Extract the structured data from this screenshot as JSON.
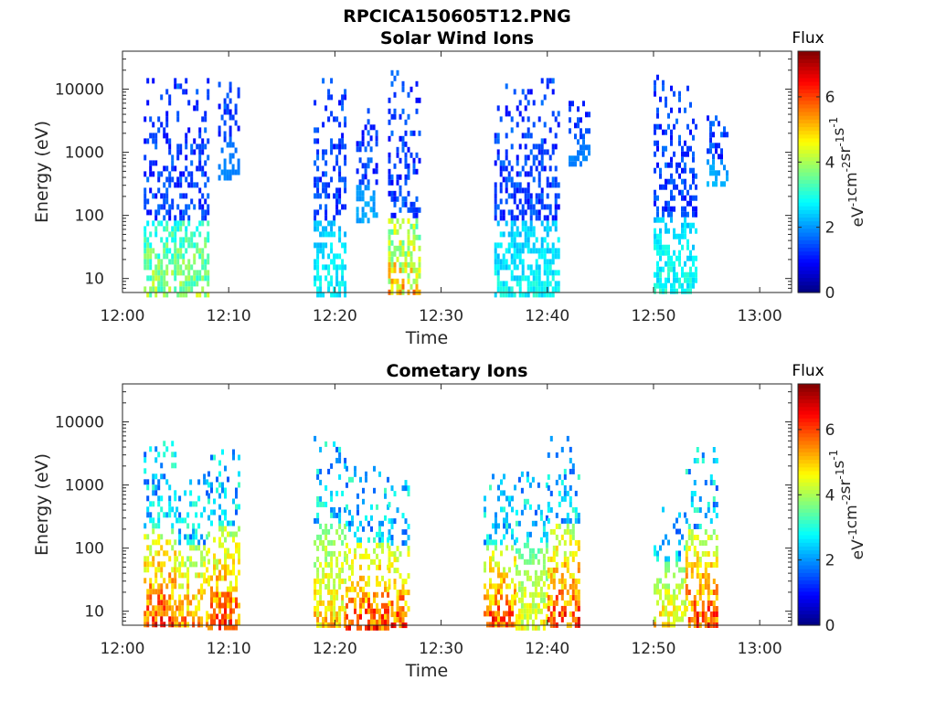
{
  "figure": {
    "filename_title": "RPCICA150605T12.PNG"
  },
  "chart_data": [
    {
      "type": "heatmap",
      "title": "Solar Wind Ions",
      "xlabel": "Time",
      "ylabel": "Energy (eV)",
      "y_scale": "log",
      "ylim": [
        6,
        40000
      ],
      "xlim": [
        "12:00",
        "13:03"
      ],
      "x_ticks": [
        "12:00",
        "12:10",
        "12:20",
        "12:30",
        "12:40",
        "12:50",
        "13:00"
      ],
      "y_ticks": [
        {
          "value": 10,
          "label": "10"
        },
        {
          "value": 100,
          "label": "100"
        },
        {
          "value": 1000,
          "label": "1000"
        },
        {
          "value": 10000,
          "label": "10000"
        }
      ],
      "colorbar": {
        "title": "Flux",
        "label": "eV-1cm-2sr-1s-1",
        "range": [
          0,
          7.4
        ],
        "ticks": [
          "0",
          "2",
          "4",
          "6"
        ],
        "colormap": "jet"
      },
      "grid": false,
      "clusters": [
        {
          "t_start": "12:02",
          "t_end": "12:08",
          "e_min": 6,
          "e_max": 15000,
          "flux_peak": 4.6
        },
        {
          "t_start": "12:09",
          "t_end": "12:11",
          "e_min": 400,
          "e_max": 16000,
          "flux_peak": 2.0
        },
        {
          "t_start": "12:18",
          "t_end": "12:21",
          "e_min": 6,
          "e_max": 15000,
          "flux_peak": 3.2
        },
        {
          "t_start": "12:22",
          "t_end": "12:24",
          "e_min": 80,
          "e_max": 5000,
          "flux_peak": 2.4
        },
        {
          "t_start": "12:25",
          "t_end": "12:28",
          "e_min": 6,
          "e_max": 20000,
          "flux_peak": 6.0
        },
        {
          "t_start": "12:35",
          "t_end": "12:41",
          "e_min": 6,
          "e_max": 15000,
          "flux_peak": 3.2
        },
        {
          "t_start": "12:42",
          "t_end": "12:44",
          "e_min": 700,
          "e_max": 8000,
          "flux_peak": 2.0
        },
        {
          "t_start": "12:50",
          "t_end": "12:54",
          "e_min": 6,
          "e_max": 17000,
          "flux_peak": 3.4
        },
        {
          "t_start": "12:55",
          "t_end": "12:57",
          "e_min": 300,
          "e_max": 7000,
          "flux_peak": 2.4
        }
      ]
    },
    {
      "type": "heatmap",
      "title": "Cometary Ions",
      "xlabel": "Time",
      "ylabel": "Energy (eV)",
      "y_scale": "log",
      "ylim": [
        6,
        40000
      ],
      "xlim": [
        "12:00",
        "13:03"
      ],
      "x_ticks": [
        "12:00",
        "12:10",
        "12:20",
        "12:30",
        "12:40",
        "12:50",
        "13:00"
      ],
      "y_ticks": [
        {
          "value": 10,
          "label": "10"
        },
        {
          "value": 100,
          "label": "100"
        },
        {
          "value": 1000,
          "label": "1000"
        },
        {
          "value": 10000,
          "label": "10000"
        }
      ],
      "colorbar": {
        "title": "Flux",
        "label": "eV-1cm-2sr-1s-1",
        "range": [
          0,
          7.4
        ],
        "ticks": [
          "0",
          "2",
          "4",
          "6"
        ],
        "colormap": "jet"
      },
      "grid": false,
      "clusters": [
        {
          "t_start": "12:02",
          "t_end": "12:05",
          "e_min": 6,
          "e_max": 5000,
          "flux_peak": 7.0
        },
        {
          "t_start": "12:05",
          "t_end": "12:08",
          "e_min": 6,
          "e_max": 1500,
          "flux_peak": 6.4
        },
        {
          "t_start": "12:08",
          "t_end": "12:11",
          "e_min": 6,
          "e_max": 4500,
          "flux_peak": 6.8
        },
        {
          "t_start": "12:18",
          "t_end": "12:21",
          "e_min": 6,
          "e_max": 6000,
          "flux_peak": 5.8
        },
        {
          "t_start": "12:21",
          "t_end": "12:25",
          "e_min": 6,
          "e_max": 2000,
          "flux_peak": 7.0
        },
        {
          "t_start": "12:25",
          "t_end": "12:27",
          "e_min": 6,
          "e_max": 1200,
          "flux_peak": 7.0
        },
        {
          "t_start": "12:34",
          "t_end": "12:37",
          "e_min": 6,
          "e_max": 1500,
          "flux_peak": 7.0
        },
        {
          "t_start": "12:37",
          "t_end": "12:40",
          "e_min": 6,
          "e_max": 2000,
          "flux_peak": 5.2
        },
        {
          "t_start": "12:40",
          "t_end": "12:43",
          "e_min": 6,
          "e_max": 6000,
          "flux_peak": 7.0
        },
        {
          "t_start": "12:50",
          "t_end": "12:53",
          "e_min": 6,
          "e_max": 450,
          "flux_peak": 5.6
        },
        {
          "t_start": "12:53",
          "t_end": "12:56",
          "e_min": 6,
          "e_max": 4000,
          "flux_peak": 7.0
        }
      ]
    }
  ]
}
